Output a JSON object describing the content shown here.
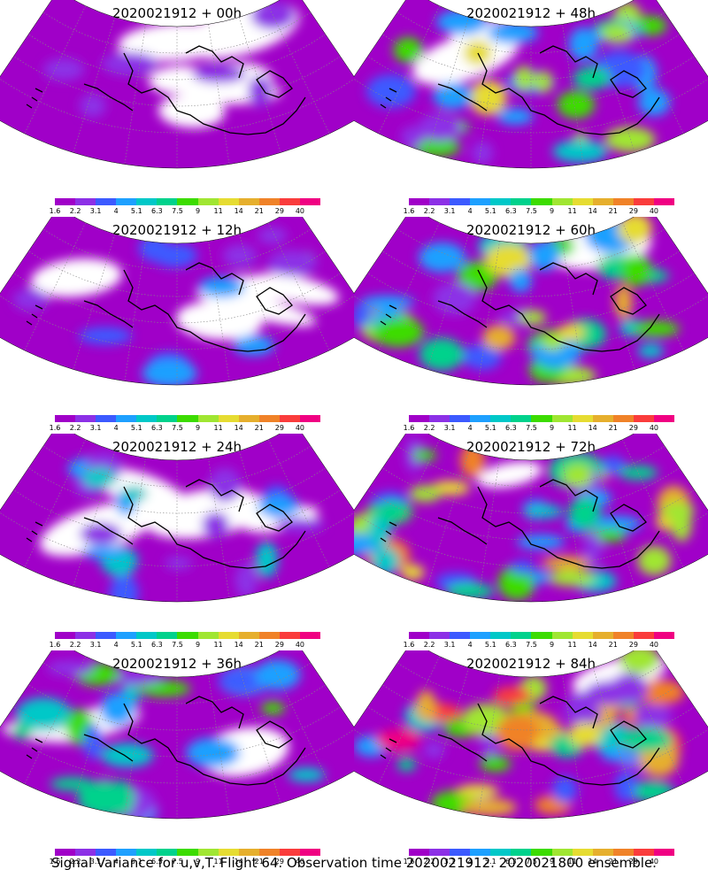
{
  "panels": [
    {
      "title": "2020021912 + 00h",
      "intensity": 0
    },
    {
      "title": "2020021912 + 48h",
      "intensity": 4
    },
    {
      "title": "2020021912 + 12h",
      "intensity": 1
    },
    {
      "title": "2020021912 + 60h",
      "intensity": 5
    },
    {
      "title": "2020021912 + 24h",
      "intensity": 2
    },
    {
      "title": "2020021912 + 72h",
      "intensity": 6
    },
    {
      "title": "2020021912 + 36h",
      "intensity": 3
    },
    {
      "title": "2020021912 + 84h",
      "intensity": 7
    }
  ],
  "legend": {
    "labels": [
      "1.6",
      "2.2",
      "3.1",
      "4",
      "5.1",
      "6.3",
      "7.5",
      "9",
      "11",
      "14",
      "21",
      "29",
      "40"
    ],
    "colors": [
      "#a000c8",
      "#8c30e6",
      "#3c5aff",
      "#1ea0ff",
      "#00c8c8",
      "#00d28c",
      "#3cdc00",
      "#a0e632",
      "#e6dc32",
      "#e6af2d",
      "#f08228",
      "#fa3c3c",
      "#f00082"
    ]
  },
  "caption": "Signal Variance for u,v,T. Flight 64. Observation time 2020021912. 2020021800 ensemble."
}
